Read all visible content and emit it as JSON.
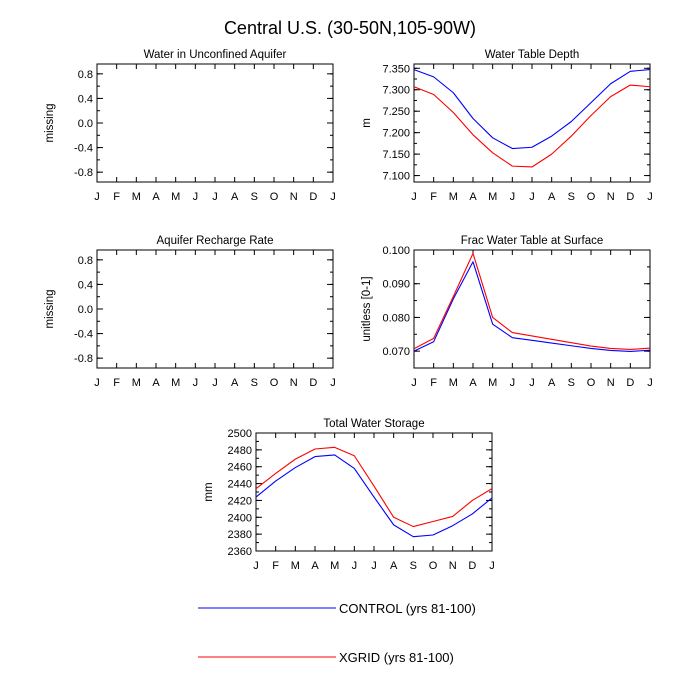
{
  "title": "Central U.S. (30-50N,105-90W)",
  "legend": {
    "entries": [
      {
        "label": "CONTROL (yrs 81-100)",
        "color": "#0000ff"
      },
      {
        "label": "XGRID (yrs 81-100)",
        "color": "#ff0000"
      }
    ]
  },
  "chart_data": [
    {
      "type": "line",
      "title": "Water in Unconfined Aquifer",
      "xlabel": "",
      "ylabel": "missing",
      "categories": [
        "J",
        "F",
        "M",
        "A",
        "M",
        "J",
        "J",
        "A",
        "S",
        "O",
        "N",
        "D",
        "J"
      ],
      "ylim": [
        -0.96,
        0.96
      ],
      "yticks": [
        -0.8,
        -0.4,
        0.0,
        0.4,
        0.8
      ],
      "ytick_labels": [
        "-0.8",
        "-0.4",
        "0.0",
        "0.4",
        "0.8"
      ],
      "yminor": 0.2,
      "series": []
    },
    {
      "type": "line",
      "title": "Water Table Depth",
      "xlabel": "",
      "ylabel": "m",
      "categories": [
        "J",
        "F",
        "M",
        "A",
        "M",
        "J",
        "J",
        "A",
        "S",
        "O",
        "N",
        "D",
        "J"
      ],
      "ylim": [
        7.085,
        7.36
      ],
      "yticks": [
        7.1,
        7.15,
        7.2,
        7.25,
        7.3,
        7.35
      ],
      "ytick_labels": [
        "7.100",
        "7.150",
        "7.200",
        "7.250",
        "7.300",
        "7.350"
      ],
      "yminor": 0.025,
      "series": [
        {
          "name": "CONTROL (yrs 81-100)",
          "color": "#0000ff",
          "values": [
            7.347,
            7.33,
            7.293,
            7.233,
            7.188,
            7.163,
            7.166,
            7.192,
            7.226,
            7.27,
            7.314,
            7.343,
            7.347
          ]
        },
        {
          "name": "XGRID (yrs 81-100)",
          "color": "#ff0000",
          "values": [
            7.307,
            7.289,
            7.247,
            7.195,
            7.153,
            7.122,
            7.12,
            7.15,
            7.192,
            7.24,
            7.284,
            7.311,
            7.307
          ]
        }
      ]
    },
    {
      "type": "line",
      "title": "Aquifer Recharge Rate",
      "xlabel": "",
      "ylabel": "missing",
      "categories": [
        "J",
        "F",
        "M",
        "A",
        "M",
        "J",
        "J",
        "A",
        "S",
        "O",
        "N",
        "D",
        "J"
      ],
      "ylim": [
        -0.96,
        0.96
      ],
      "yticks": [
        -0.8,
        -0.4,
        0.0,
        0.4,
        0.8
      ],
      "ytick_labels": [
        "-0.8",
        "-0.4",
        "0.0",
        "0.4",
        "0.8"
      ],
      "yminor": 0.2,
      "series": []
    },
    {
      "type": "line",
      "title": "Frac Water Table at Surface",
      "xlabel": "",
      "ylabel": "unitless [0-1]",
      "categories": [
        "J",
        "F",
        "M",
        "A",
        "M",
        "J",
        "J",
        "A",
        "S",
        "O",
        "N",
        "D",
        "J"
      ],
      "ylim": [
        0.065,
        0.1
      ],
      "yticks": [
        0.07,
        0.08,
        0.09,
        0.1
      ],
      "ytick_labels": [
        "0.070",
        "0.080",
        "0.090",
        "0.100"
      ],
      "yminor": 0.005,
      "series": [
        {
          "name": "CONTROL (yrs 81-100)",
          "color": "#0000ff",
          "values": [
            0.07,
            0.0728,
            0.0855,
            0.0965,
            0.078,
            0.074,
            0.0732,
            0.0724,
            0.0716,
            0.0708,
            0.0702,
            0.0699,
            0.0703
          ]
        },
        {
          "name": "XGRID (yrs 81-100)",
          "color": "#ff0000",
          "values": [
            0.0707,
            0.0738,
            0.0862,
            0.099,
            0.08,
            0.0755,
            0.0745,
            0.0735,
            0.0725,
            0.0715,
            0.0708,
            0.0705,
            0.0709
          ]
        }
      ]
    },
    {
      "type": "line",
      "title": "Total Water Storage",
      "xlabel": "",
      "ylabel": "mm",
      "categories": [
        "J",
        "F",
        "M",
        "A",
        "M",
        "J",
        "J",
        "A",
        "S",
        "O",
        "N",
        "D",
        "J"
      ],
      "ylim": [
        2360,
        2500
      ],
      "yticks": [
        2360,
        2380,
        2400,
        2420,
        2440,
        2460,
        2480,
        2500
      ],
      "ytick_labels": [
        "2360",
        "2380",
        "2400",
        "2420",
        "2440",
        "2460",
        "2480",
        "2500"
      ],
      "yminor": 10,
      "series": [
        {
          "name": "CONTROL (yrs 81-100)",
          "color": "#0000ff",
          "values": [
            2424,
            2443,
            2459,
            2472,
            2474,
            2458,
            2424,
            2391,
            2377,
            2379,
            2390,
            2404,
            2423
          ]
        },
        {
          "name": "XGRID (yrs 81-100)",
          "color": "#ff0000",
          "values": [
            2434,
            2452,
            2469,
            2481,
            2483,
            2473,
            2437,
            2400,
            2389,
            2395,
            2401,
            2420,
            2434
          ]
        }
      ]
    }
  ]
}
